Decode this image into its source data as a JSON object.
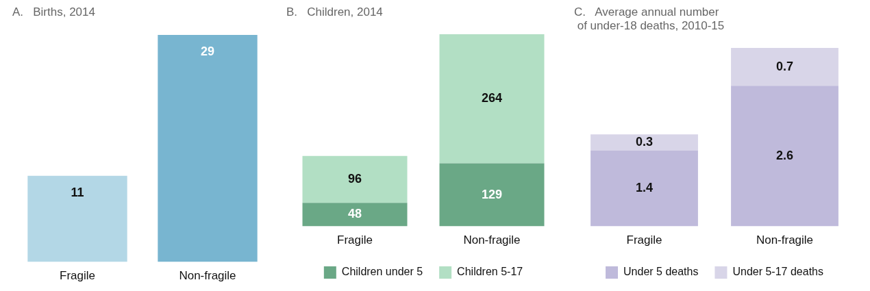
{
  "chart_data": [
    {
      "type": "bar",
      "title": "A.   Births, 2014",
      "categories": [
        "Fragile",
        "Non-fragile"
      ],
      "values": [
        11,
        29
      ],
      "colors": [
        "#b3d7e6",
        "#78b5d0"
      ],
      "data_labels": true,
      "tick_labels": "x",
      "legend": false
    },
    {
      "type": "bar",
      "title": "B.   Children, 2014",
      "categories": [
        "Fragile",
        "Non-fragile"
      ],
      "stacked": true,
      "data_labels": true,
      "tick_labels": "x",
      "legend": "bottom",
      "series": [
        {
          "name": "Children under 5",
          "color": "#6aa886",
          "values": [
            48,
            129
          ]
        },
        {
          "name": "Children 5-17",
          "color": "#b2dfc4",
          "values": [
            96,
            264
          ]
        }
      ]
    },
    {
      "type": "bar",
      "title": "C.   Average annual number\n of under-18 deaths, 2010-15",
      "categories": [
        "Fragile",
        "Non-fragile"
      ],
      "stacked": true,
      "data_labels": true,
      "tick_labels": "x",
      "legend": "bottom",
      "series": [
        {
          "name": "Under 5 deaths",
          "color": "#bfbadb",
          "values": [
            1.4,
            2.6
          ]
        },
        {
          "name": "Under 5-17 deaths",
          "color": "#d8d5e8",
          "values": [
            0.3,
            0.7
          ]
        }
      ]
    }
  ]
}
